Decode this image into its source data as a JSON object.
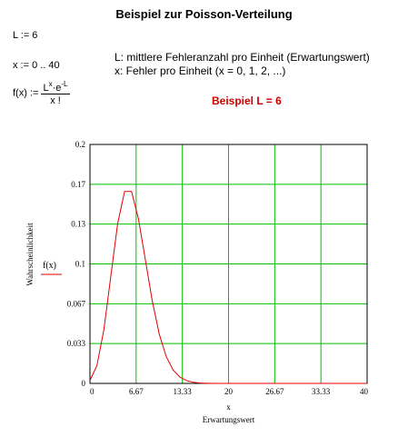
{
  "title": "Beispiel zur Poisson-Verteilung",
  "definitions": {
    "L_def": "L := 6",
    "x_def": "x := 0 .. 40",
    "f_lhs": "f(x) :=",
    "f_numerator_base1": "L",
    "f_numerator_exp1": "x",
    "f_numerator_mid": "·e",
    "f_numerator_exp2": "-L",
    "f_denominator": "x !"
  },
  "description": {
    "line1": "L: mittlere Fehleranzahl pro Einheit (Erwartungswert)",
    "line2": "x: Fehler pro Einheit (x = 0, 1, 2, ...)"
  },
  "example": {
    "label": "Beispiel L = 6",
    "color": "#cc0000"
  },
  "chart_data": {
    "type": "line",
    "xlabel": "x",
    "xlabel2": "Erwartungswert",
    "ylabel": "Wahrscheinlichkeit",
    "legend": "f(x)",
    "xlim": [
      0,
      40
    ],
    "ylim": [
      0,
      0.2
    ],
    "x_ticks": [
      "0",
      "6.67",
      "13.33",
      "20",
      "26.67",
      "33.33",
      "40"
    ],
    "y_ticks": [
      "0",
      "0.033",
      "0.067",
      "0.1",
      "0.13",
      "0.17",
      "0.2"
    ],
    "grid": true,
    "grid_color": "#00c000",
    "line_color": "#e00000",
    "series": [
      {
        "name": "f(x)",
        "x": [
          0,
          1,
          2,
          3,
          4,
          5,
          6,
          7,
          8,
          9,
          10,
          11,
          12,
          13,
          14,
          15,
          16,
          17,
          18,
          19,
          20,
          21,
          22,
          23,
          24,
          25,
          26,
          27,
          28,
          29,
          30,
          31,
          32,
          33,
          34,
          35,
          36,
          37,
          38,
          39,
          40
        ],
        "values": [
          0.00248,
          0.01487,
          0.04462,
          0.08924,
          0.13385,
          0.16062,
          0.16062,
          0.13768,
          0.10326,
          0.06884,
          0.0413,
          0.02253,
          0.01126,
          0.0052,
          0.00223,
          0.00089,
          0.00033,
          0.00012,
          4e-05,
          1e-05,
          0,
          0,
          0,
          0,
          0,
          0,
          0,
          0,
          0,
          0,
          0,
          0,
          0,
          0,
          0,
          0,
          0,
          0,
          0,
          0,
          0
        ]
      }
    ]
  }
}
